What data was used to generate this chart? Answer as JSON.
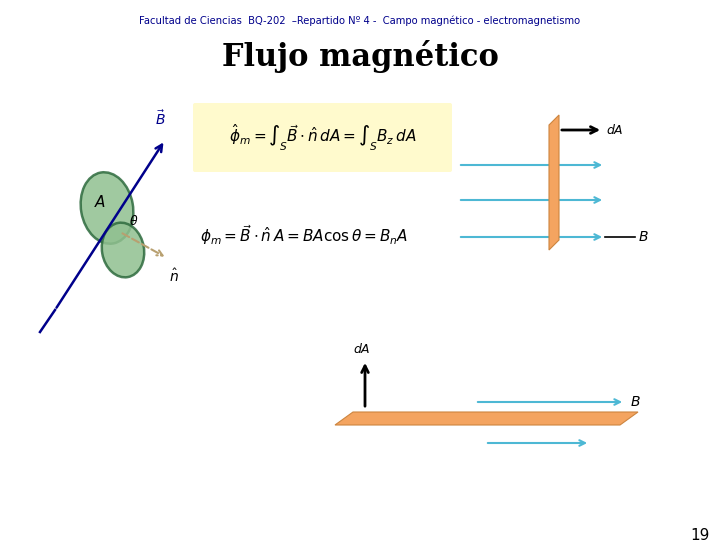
{
  "title_header": "Facultad de Ciencias  BQ-202  –Repartido Nº 4 -  Campo magnético - electromagnetismo",
  "title_main": "Flujo magnético",
  "header_color": "#00008B",
  "title_color": "#000000",
  "bg_color": "#ffffff",
  "page_number": "19",
  "formula_box_color": "#FFFACD",
  "cyan_color": "#4DB8D4",
  "shape_fill": "#90C090",
  "shape_edge": "#2E6B3E",
  "plate_fill": "#F4A460",
  "plate_edge": "#CD853F",
  "arrow_color": "#4DB8D4",
  "blue_color": "#00008B",
  "dA_arrow_color": "#111111",
  "n_arrow_color": "#B8A070"
}
